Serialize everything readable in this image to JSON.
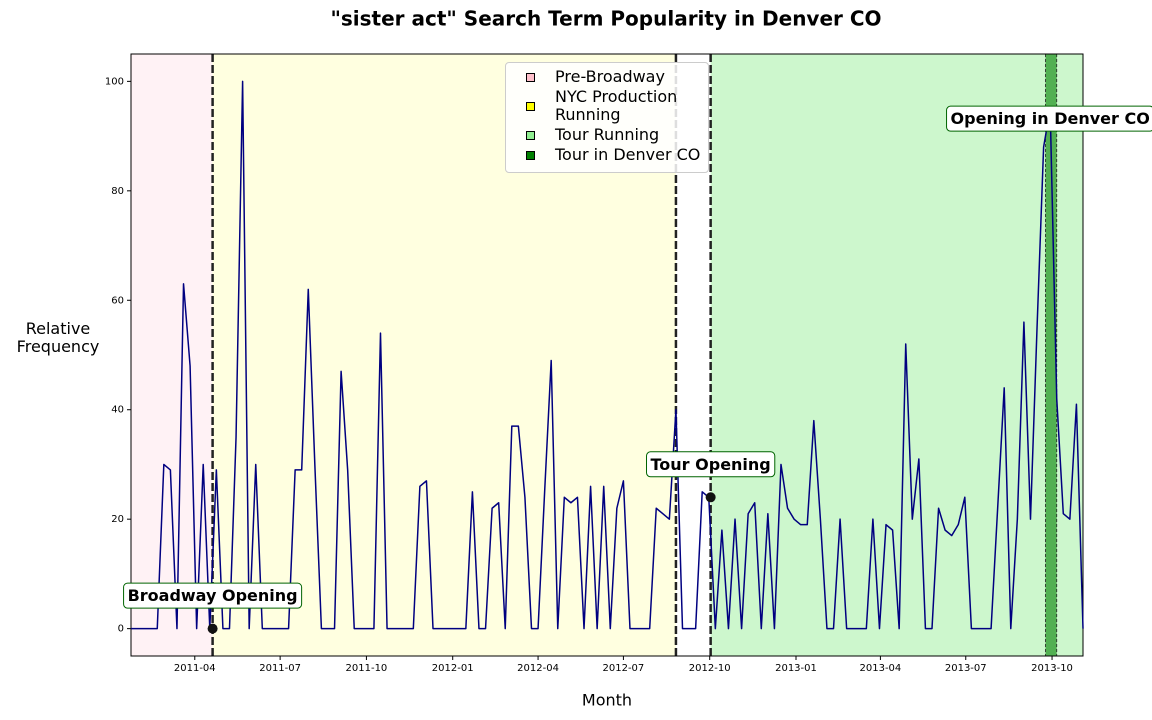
{
  "chart_data": {
    "type": "line",
    "title": "\"sister act\" Search Term Popularity in Denver CO",
    "x_label": "Month",
    "y_label": "Relative Frequency",
    "color": "#000080",
    "x": [
      "2011-01-23",
      "2011-01-30",
      "2011-02-06",
      "2011-02-13",
      "2011-02-20",
      "2011-02-27",
      "2011-03-06",
      "2011-03-13",
      "2011-03-20",
      "2011-03-27",
      "2011-04-03",
      "2011-04-10",
      "2011-04-17",
      "2011-04-24",
      "2011-05-01",
      "2011-05-08",
      "2011-05-15",
      "2011-05-22",
      "2011-05-29",
      "2011-06-05",
      "2011-06-12",
      "2011-06-19",
      "2011-06-26",
      "2011-07-03",
      "2011-07-10",
      "2011-07-17",
      "2011-07-24",
      "2011-07-31",
      "2011-08-07",
      "2011-08-14",
      "2011-08-21",
      "2011-08-28",
      "2011-09-04",
      "2011-09-11",
      "2011-09-18",
      "2011-09-25",
      "2011-10-02",
      "2011-10-09",
      "2011-10-16",
      "2011-10-23",
      "2011-10-30",
      "2011-11-06",
      "2011-11-13",
      "2011-11-20",
      "2011-11-27",
      "2011-12-04",
      "2011-12-11",
      "2011-12-18",
      "2011-12-25",
      "2012-01-01",
      "2012-01-08",
      "2012-01-15",
      "2012-01-22",
      "2012-01-29",
      "2012-02-05",
      "2012-02-12",
      "2012-02-19",
      "2012-02-26",
      "2012-03-04",
      "2012-03-11",
      "2012-03-18",
      "2012-03-25",
      "2012-04-01",
      "2012-04-08",
      "2012-04-15",
      "2012-04-22",
      "2012-04-29",
      "2012-05-06",
      "2012-05-13",
      "2012-05-20",
      "2012-05-27",
      "2012-06-03",
      "2012-06-10",
      "2012-06-17",
      "2012-06-24",
      "2012-07-01",
      "2012-07-08",
      "2012-07-15",
      "2012-07-22",
      "2012-07-29",
      "2012-08-05",
      "2012-08-12",
      "2012-08-19",
      "2012-08-26",
      "2012-09-02",
      "2012-09-09",
      "2012-09-16",
      "2012-09-23",
      "2012-09-30",
      "2012-10-07",
      "2012-10-14",
      "2012-10-21",
      "2012-10-28",
      "2012-11-04",
      "2012-11-11",
      "2012-11-18",
      "2012-11-25",
      "2012-12-02",
      "2012-12-09",
      "2012-12-16",
      "2012-12-23",
      "2012-12-30",
      "2013-01-06",
      "2013-01-13",
      "2013-01-20",
      "2013-01-27",
      "2013-02-03",
      "2013-02-10",
      "2013-02-17",
      "2013-02-24",
      "2013-03-03",
      "2013-03-10",
      "2013-03-17",
      "2013-03-24",
      "2013-03-31",
      "2013-04-07",
      "2013-04-14",
      "2013-04-21",
      "2013-04-28",
      "2013-05-05",
      "2013-05-12",
      "2013-05-19",
      "2013-05-26",
      "2013-06-02",
      "2013-06-09",
      "2013-06-16",
      "2013-06-23",
      "2013-06-30",
      "2013-07-07",
      "2013-07-14",
      "2013-07-21",
      "2013-07-28",
      "2013-08-04",
      "2013-08-11",
      "2013-08-18",
      "2013-08-25",
      "2013-09-01",
      "2013-09-08",
      "2013-09-15",
      "2013-09-22",
      "2013-09-29",
      "2013-10-06",
      "2013-10-13",
      "2013-10-20",
      "2013-10-27",
      "2013-11-03"
    ],
    "values": [
      0,
      0,
      0,
      0,
      0,
      30,
      29,
      0,
      63,
      48,
      0,
      30,
      0,
      29,
      0,
      0,
      35,
      100,
      0,
      30,
      0,
      0,
      0,
      0,
      0,
      29,
      29,
      62,
      30,
      0,
      0,
      0,
      47,
      29,
      0,
      0,
      0,
      0,
      54,
      0,
      0,
      0,
      0,
      0,
      26,
      27,
      0,
      0,
      0,
      0,
      0,
      0,
      25,
      0,
      0,
      22,
      23,
      0,
      37,
      37,
      24,
      0,
      0,
      25,
      49,
      0,
      24,
      23,
      24,
      0,
      26,
      0,
      26,
      0,
      22,
      27,
      0,
      0,
      0,
      0,
      22,
      21,
      20,
      40,
      0,
      0,
      0,
      25,
      24,
      0,
      18,
      0,
      20,
      0,
      21,
      23,
      0,
      21,
      0,
      30,
      22,
      20,
      19,
      19,
      38,
      20,
      0,
      0,
      20,
      0,
      0,
      0,
      0,
      20,
      0,
      19,
      18,
      0,
      52,
      20,
      31,
      0,
      0,
      22,
      18,
      17,
      19,
      24,
      0,
      0,
      0,
      0,
      22,
      44,
      0,
      20,
      56,
      20,
      55,
      88,
      95,
      42,
      21,
      20,
      41,
      0
    ],
    "xlim": [
      "2011-01-23",
      "2013-11-03"
    ],
    "ylim": [
      -5,
      105
    ],
    "xticks": [
      {
        "value": "2011-04-01",
        "label": "2011-04"
      },
      {
        "value": "2011-07-01",
        "label": "2011-07"
      },
      {
        "value": "2011-10-01",
        "label": "2011-10"
      },
      {
        "value": "2012-01-01",
        "label": "2012-01"
      },
      {
        "value": "2012-04-01",
        "label": "2012-04"
      },
      {
        "value": "2012-07-01",
        "label": "2012-07"
      },
      {
        "value": "2012-10-01",
        "label": "2012-10"
      },
      {
        "value": "2013-01-01",
        "label": "2013-01"
      },
      {
        "value": "2013-04-01",
        "label": "2013-04"
      },
      {
        "value": "2013-07-01",
        "label": "2013-07"
      },
      {
        "value": "2013-10-01",
        "label": "2013-10"
      }
    ],
    "yticks": [
      0,
      20,
      40,
      60,
      80,
      100
    ],
    "regions": [
      {
        "name": "Pre-Broadway",
        "start": "2011-01-23",
        "end": "2011-04-20",
        "color": "#ffc0cb",
        "opacity": 0.2
      },
      {
        "name": "NYC Production Running",
        "start": "2011-04-20",
        "end": "2012-08-26",
        "color": "#ffff00",
        "opacity": 0.12
      },
      {
        "name": "Tour Running",
        "start": "2012-10-02",
        "end": "2013-11-03",
        "color": "#90ee90",
        "opacity": 0.45
      },
      {
        "name": "Tour in Denver CO",
        "start": "2013-09-24",
        "end": "2013-10-06",
        "color": "#008000",
        "opacity": 0.6
      }
    ],
    "annotations": [
      {
        "text": "Broadway Opening",
        "x": "2011-04-20",
        "y": 0,
        "marker": true
      },
      {
        "text": "Tour Opening",
        "x": "2012-10-02",
        "y": 24,
        "marker": true
      },
      {
        "text": "Opening in Denver CO",
        "x": "2013-09-29",
        "y": 93,
        "marker": false
      }
    ],
    "legend": "upper center"
  }
}
